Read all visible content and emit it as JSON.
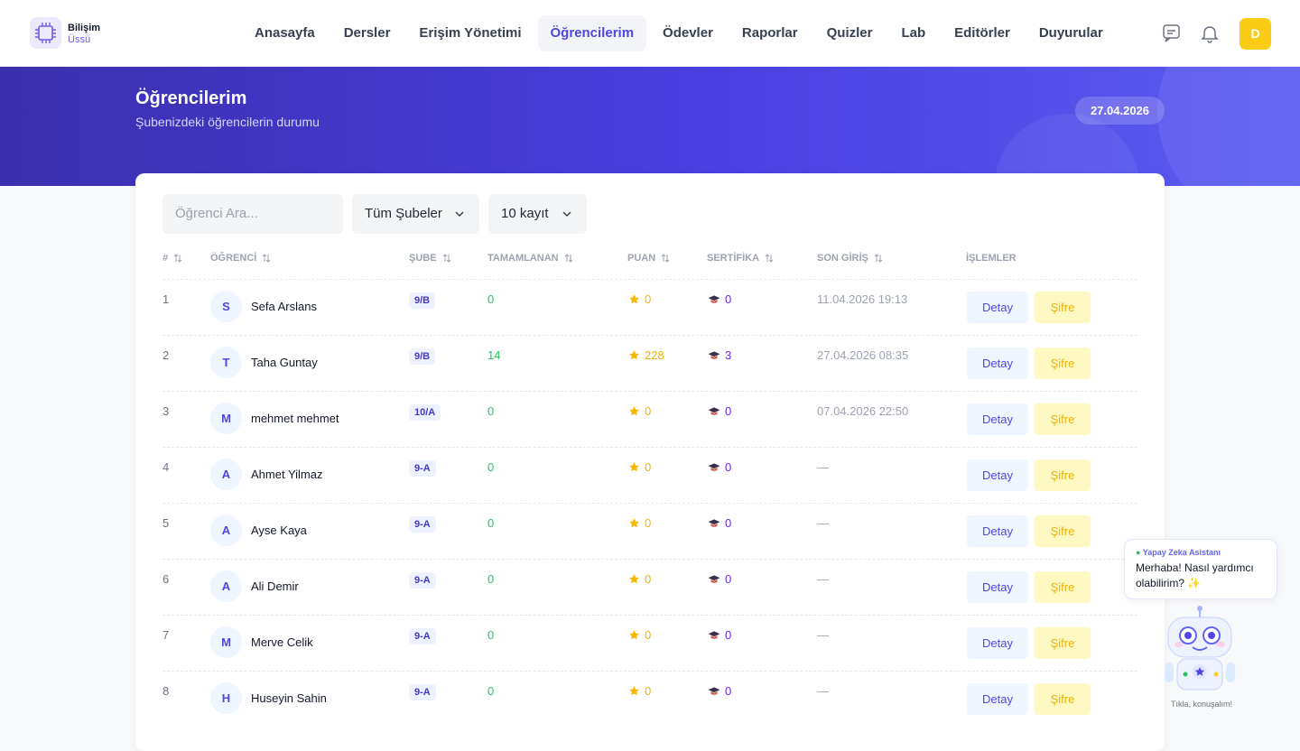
{
  "header": {
    "logo_title": "Bilişim",
    "logo_subtitle": "Üssü",
    "nav": [
      "Anasayfa",
      "Dersler",
      "Erişim Yönetimi",
      "Öğrencilerim",
      "Ödevler",
      "Raporlar",
      "Quizler",
      "Lab",
      "Editörler",
      "Duyurular"
    ],
    "active_nav": 3,
    "avatar": "D"
  },
  "banner": {
    "title": "Öğrencilerim",
    "subtitle": "Şubenizdeki öğrencilerin durumu",
    "date": "27.04.2026"
  },
  "filters": {
    "search_placeholder": "Öğrenci Ara...",
    "branch": "Tüm Şubeler",
    "page_size": "10 kayıt"
  },
  "table": {
    "columns": [
      "#",
      "ÖĞRENCİ",
      "ŞUBE",
      "TAMAMLANAN",
      "PUAN",
      "SERTİFİKA",
      "SON GİRİŞ",
      "İŞLEMLER"
    ],
    "actions": [
      "Detay",
      "Şifre"
    ],
    "rows": [
      {
        "no": 1,
        "initial": "S",
        "name": "Sefa Arslans",
        "branch": "9/B",
        "completed": 0,
        "points": 0,
        "certificates": 0,
        "last_login": "11.04.2026 19:13"
      },
      {
        "no": 2,
        "initial": "T",
        "name": "Taha Guntay",
        "branch": "9/B",
        "completed": 14,
        "points": 228,
        "certificates": 3,
        "last_login": "27.04.2026 08:35"
      },
      {
        "no": 3,
        "initial": "M",
        "name": "mehmet mehmet",
        "branch": "10/A",
        "completed": 0,
        "points": 0,
        "certificates": 0,
        "last_login": "07.04.2026 22:50"
      },
      {
        "no": 4,
        "initial": "A",
        "name": "Ahmet Yilmaz",
        "branch": "9-A",
        "completed": 0,
        "points": 0,
        "certificates": 0,
        "last_login": "—"
      },
      {
        "no": 5,
        "initial": "A",
        "name": "Ayse Kaya",
        "branch": "9-A",
        "completed": 0,
        "points": 0,
        "certificates": 0,
        "last_login": "—"
      },
      {
        "no": 6,
        "initial": "A",
        "name": "Ali Demir",
        "branch": "9-A",
        "completed": 0,
        "points": 0,
        "certificates": 0,
        "last_login": "—"
      },
      {
        "no": 7,
        "initial": "M",
        "name": "Merve Celik",
        "branch": "9-A",
        "completed": 0,
        "points": 0,
        "certificates": 0,
        "last_login": "—"
      },
      {
        "no": 8,
        "initial": "H",
        "name": "Huseyin Sahin",
        "branch": "9-A",
        "completed": 0,
        "points": 0,
        "certificates": 0,
        "last_login": "—"
      }
    ]
  },
  "assistant": {
    "title": "Yapay Zeka Asistanı",
    "message": "Merhaba! Nasıl yardımcı olabilirim? ✨",
    "caption": "Tıkla, konuşalım!"
  }
}
